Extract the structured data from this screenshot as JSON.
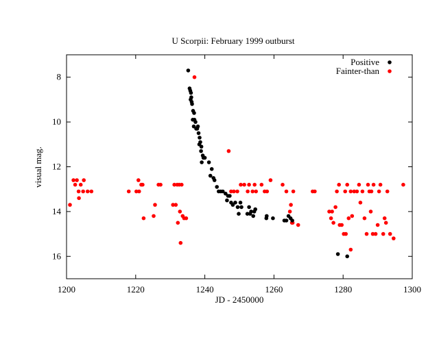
{
  "chart_data": {
    "type": "scatter",
    "title": "U Scorpii: February 1999 outburst",
    "xlabel": "JD - 2450000",
    "ylabel": "visual mag.",
    "xlim": [
      1200,
      1300
    ],
    "ylim": [
      17,
      7
    ],
    "y_inverted": true,
    "xticks": [
      1200,
      1220,
      1240,
      1260,
      1280,
      1300
    ],
    "yticks": [
      8,
      10,
      12,
      14,
      16
    ],
    "legend_position": "top-right",
    "series": [
      {
        "name": "Positive",
        "color": "#000000",
        "points": [
          [
            1235.2,
            7.7
          ],
          [
            1235.6,
            8.5
          ],
          [
            1235.8,
            8.6
          ],
          [
            1236.0,
            8.7
          ],
          [
            1235.9,
            9.0
          ],
          [
            1236.2,
            9.1
          ],
          [
            1236.3,
            9.2
          ],
          [
            1236.1,
            8.9
          ],
          [
            1236.6,
            9.5
          ],
          [
            1236.9,
            9.6
          ],
          [
            1236.5,
            9.9
          ],
          [
            1237.0,
            9.9
          ],
          [
            1237.3,
            10.0
          ],
          [
            1236.8,
            10.2
          ],
          [
            1237.5,
            10.3
          ],
          [
            1237.8,
            10.3
          ],
          [
            1238.0,
            10.2
          ],
          [
            1238.2,
            10.5
          ],
          [
            1238.5,
            10.7
          ],
          [
            1238.7,
            10.9
          ],
          [
            1238.4,
            11.0
          ],
          [
            1239.0,
            11.1
          ],
          [
            1238.9,
            11.3
          ],
          [
            1239.4,
            11.5
          ],
          [
            1239.6,
            11.6
          ],
          [
            1240.0,
            11.6
          ],
          [
            1239.1,
            11.8
          ],
          [
            1241.2,
            11.8
          ],
          [
            1242.0,
            12.1
          ],
          [
            1241.6,
            12.4
          ],
          [
            1242.5,
            12.5
          ],
          [
            1242.8,
            12.6
          ],
          [
            1243.5,
            12.9
          ],
          [
            1244.0,
            13.1
          ],
          [
            1244.6,
            13.1
          ],
          [
            1245.2,
            13.1
          ],
          [
            1246.0,
            13.2
          ],
          [
            1246.7,
            13.3
          ],
          [
            1247.2,
            13.3
          ],
          [
            1246.4,
            13.5
          ],
          [
            1247.6,
            13.6
          ],
          [
            1248.1,
            13.7
          ],
          [
            1248.8,
            13.6
          ],
          [
            1249.5,
            13.8
          ],
          [
            1249.8,
            14.1
          ],
          [
            1250.3,
            13.6
          ],
          [
            1250.6,
            13.8
          ],
          [
            1252.3,
            14.1
          ],
          [
            1252.8,
            13.8
          ],
          [
            1253.1,
            14.1
          ],
          [
            1253.4,
            14.0
          ],
          [
            1254.0,
            14.2
          ],
          [
            1254.3,
            14.0
          ],
          [
            1254.6,
            13.9
          ],
          [
            1257.8,
            14.3
          ],
          [
            1257.9,
            14.2
          ],
          [
            1259.7,
            14.3
          ],
          [
            1263.0,
            14.4
          ],
          [
            1263.6,
            14.4
          ],
          [
            1264.2,
            14.2
          ],
          [
            1264.8,
            14.3
          ],
          [
            1265.3,
            14.4
          ],
          [
            1278.5,
            15.9
          ],
          [
            1281.2,
            16.0
          ]
        ]
      },
      {
        "name": "Fainter-than",
        "color": "#ff0000",
        "points": [
          [
            1201.0,
            13.7
          ],
          [
            1202.0,
            12.6
          ],
          [
            1202.5,
            12.8
          ],
          [
            1203.0,
            12.6
          ],
          [
            1203.5,
            13.1
          ],
          [
            1203.6,
            13.4
          ],
          [
            1204.1,
            12.8
          ],
          [
            1204.8,
            13.1
          ],
          [
            1205.0,
            12.6
          ],
          [
            1206.1,
            13.1
          ],
          [
            1207.2,
            13.1
          ],
          [
            1218.0,
            13.1
          ],
          [
            1220.2,
            13.1
          ],
          [
            1220.8,
            12.6
          ],
          [
            1221.0,
            13.1
          ],
          [
            1221.6,
            12.8
          ],
          [
            1222.0,
            12.8
          ],
          [
            1222.3,
            14.3
          ],
          [
            1225.2,
            14.2
          ],
          [
            1225.6,
            13.7
          ],
          [
            1226.6,
            12.8
          ],
          [
            1227.2,
            12.8
          ],
          [
            1230.8,
            13.7
          ],
          [
            1231.2,
            12.8
          ],
          [
            1231.6,
            13.7
          ],
          [
            1232.0,
            12.8
          ],
          [
            1232.2,
            14.5
          ],
          [
            1232.6,
            12.8
          ],
          [
            1232.8,
            14.0
          ],
          [
            1233.0,
            15.4
          ],
          [
            1233.3,
            12.8
          ],
          [
            1233.6,
            14.2
          ],
          [
            1234.0,
            14.3
          ],
          [
            1234.6,
            14.3
          ],
          [
            1237.0,
            8.0
          ],
          [
            1246.9,
            11.3
          ],
          [
            1247.6,
            13.1
          ],
          [
            1248.4,
            13.1
          ],
          [
            1249.4,
            13.1
          ],
          [
            1250.4,
            12.8
          ],
          [
            1251.4,
            12.8
          ],
          [
            1252.4,
            13.1
          ],
          [
            1252.8,
            12.8
          ],
          [
            1253.8,
            13.1
          ],
          [
            1254.4,
            12.8
          ],
          [
            1254.8,
            13.1
          ],
          [
            1256.4,
            12.8
          ],
          [
            1257.3,
            13.1
          ],
          [
            1258.0,
            13.1
          ],
          [
            1259.0,
            12.6
          ],
          [
            1262.5,
            12.8
          ],
          [
            1263.6,
            13.1
          ],
          [
            1264.6,
            14.0
          ],
          [
            1264.9,
            13.7
          ],
          [
            1265.2,
            14.5
          ],
          [
            1265.4,
            14.5
          ],
          [
            1265.6,
            13.1
          ],
          [
            1267.0,
            14.6
          ],
          [
            1271.2,
            13.1
          ],
          [
            1271.8,
            13.1
          ],
          [
            1276.0,
            14.0
          ],
          [
            1276.5,
            14.3
          ],
          [
            1276.8,
            14.0
          ],
          [
            1277.2,
            14.5
          ],
          [
            1277.8,
            13.8
          ],
          [
            1278.2,
            13.1
          ],
          [
            1278.8,
            12.8
          ],
          [
            1279.0,
            14.6
          ],
          [
            1279.6,
            14.6
          ],
          [
            1280.2,
            15.0
          ],
          [
            1280.6,
            13.1
          ],
          [
            1280.8,
            15.0
          ],
          [
            1281.2,
            12.8
          ],
          [
            1281.6,
            14.3
          ],
          [
            1282.2,
            15.7
          ],
          [
            1282.6,
            14.2
          ],
          [
            1282.2,
            13.1
          ],
          [
            1283.2,
            13.1
          ],
          [
            1284.0,
            13.1
          ],
          [
            1284.6,
            12.8
          ],
          [
            1285.0,
            13.6
          ],
          [
            1285.6,
            13.1
          ],
          [
            1286.2,
            14.3
          ],
          [
            1286.8,
            15.0
          ],
          [
            1287.2,
            12.8
          ],
          [
            1287.6,
            13.1
          ],
          [
            1288.0,
            14.0
          ],
          [
            1288.2,
            13.1
          ],
          [
            1288.6,
            15.0
          ],
          [
            1288.8,
            12.8
          ],
          [
            1289.4,
            15.0
          ],
          [
            1290.0,
            14.6
          ],
          [
            1290.4,
            13.1
          ],
          [
            1290.8,
            12.8
          ],
          [
            1291.6,
            15.0
          ],
          [
            1292.0,
            14.3
          ],
          [
            1292.4,
            14.5
          ],
          [
            1292.8,
            13.1
          ],
          [
            1293.6,
            15.0
          ],
          [
            1294.6,
            15.2
          ],
          [
            1297.4,
            12.8
          ]
        ]
      }
    ]
  }
}
